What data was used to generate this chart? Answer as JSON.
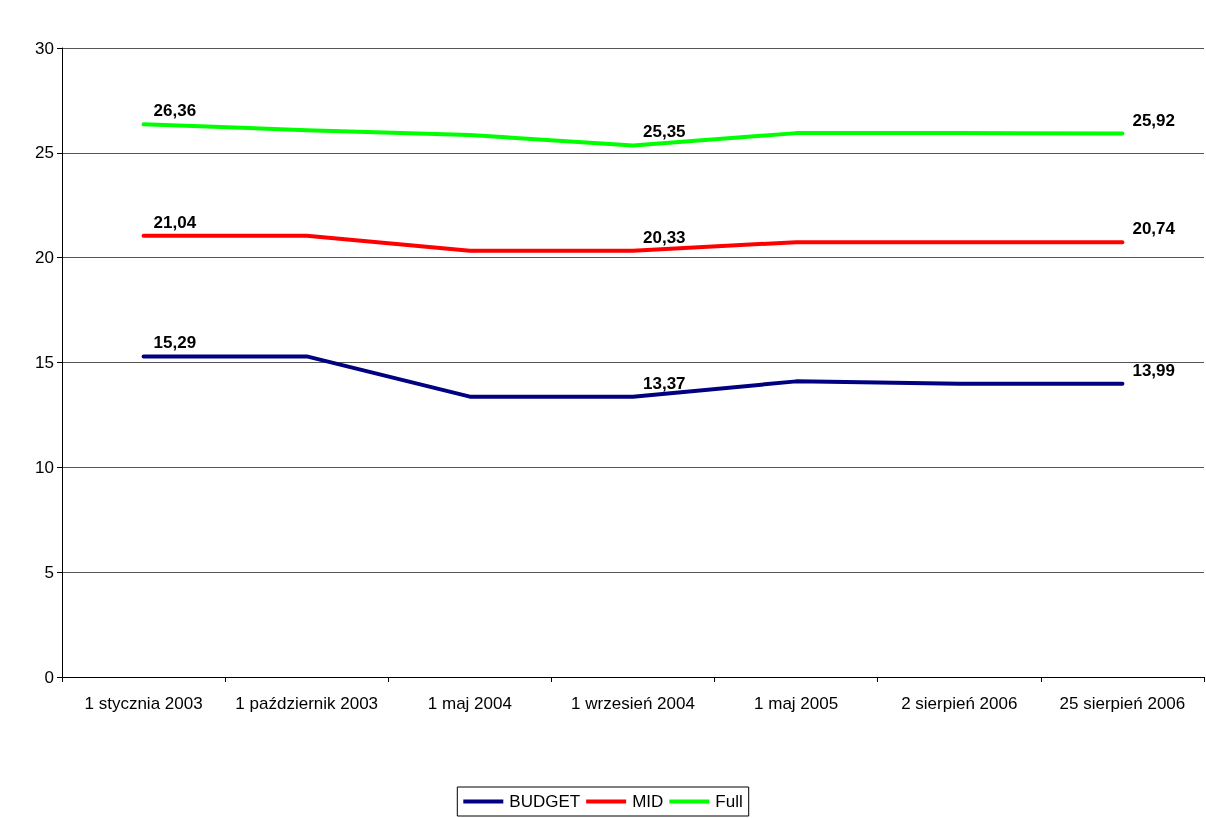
{
  "chart_data": {
    "type": "line",
    "categories": [
      "1 stycznia 2003",
      "1 październik 2003",
      "1 maj 2004",
      "1 wrzesień 2004",
      "1 maj 2005",
      "2 sierpień 2006",
      "25 sierpień 2006"
    ],
    "series": [
      {
        "name": "BUDGET",
        "color": "#000080",
        "values": [
          15.29,
          15.29,
          13.37,
          13.37,
          14.1,
          13.99,
          13.99
        ],
        "value_labels": [
          "15,29",
          null,
          null,
          "13,37",
          null,
          null,
          "13,99"
        ]
      },
      {
        "name": "MID",
        "color": "#ff0000",
        "values": [
          21.04,
          21.04,
          20.33,
          20.33,
          20.74,
          20.74,
          20.74
        ],
        "value_labels": [
          "21,04",
          null,
          null,
          "20,33",
          null,
          null,
          "20,74"
        ]
      },
      {
        "name": "Full",
        "color": "#00ff00",
        "values": [
          26.36,
          26.08,
          25.85,
          25.35,
          25.94,
          25.95,
          25.92
        ],
        "value_labels": [
          "26,36",
          null,
          null,
          "25,35",
          null,
          null,
          "25,92"
        ]
      }
    ],
    "ylim": [
      0,
      30
    ],
    "yticks": [
      0,
      5,
      10,
      15,
      20,
      25,
      30
    ],
    "grid": "y",
    "legend": "bottom",
    "marker": "none",
    "line_style": "solid"
  }
}
